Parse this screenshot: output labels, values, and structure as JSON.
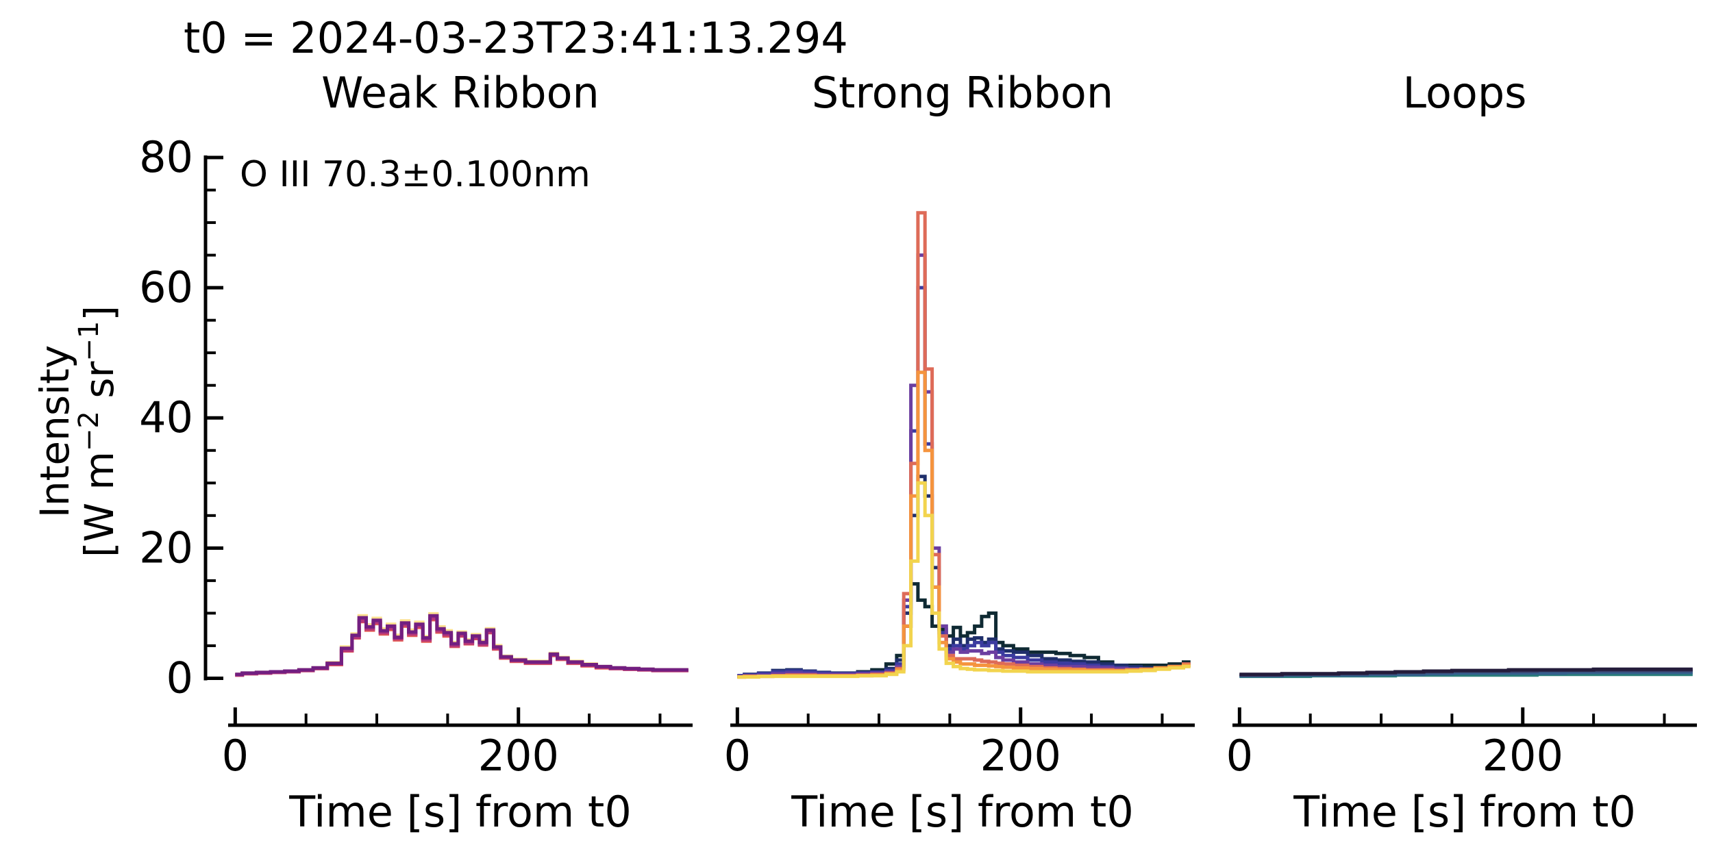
{
  "chart_data": {
    "type": "line",
    "suptitle": "t0 = 2024-03-23T23:41:13.294",
    "ylabel_line1": "Intensity",
    "ylabel_line2": "[W m",
    "ylabel_exp1": "−2",
    "ylabel_mid": " sr",
    "ylabel_exp2": "−1",
    "ylabel_end": "]",
    "xlabel": "Time [s] from t0",
    "annotation": "O III 70.3±0.100nm",
    "ylim": [
      -5,
      80
    ],
    "xlim": [
      -5,
      323
    ],
    "yticks": [
      "0",
      "20",
      "40",
      "60",
      "80"
    ],
    "xticks": [
      "0",
      "200"
    ],
    "panels": [
      {
        "title": "Weak Ribbon",
        "x": [
          0,
          10,
          20,
          30,
          40,
          50,
          60,
          70,
          80,
          85,
          90,
          95,
          100,
          105,
          110,
          115,
          120,
          125,
          130,
          135,
          140,
          145,
          150,
          155,
          160,
          165,
          170,
          175,
          180,
          185,
          190,
          200,
          210,
          220,
          225,
          230,
          240,
          250,
          260,
          270,
          280,
          290,
          300,
          310,
          320
        ],
        "series": [
          {
            "color": "#fbe08f",
            "values": [
              0.6,
              0.8,
              0.9,
              1.0,
              1.1,
              1.3,
              1.6,
              2.4,
              4.8,
              6.8,
              9.6,
              8.2,
              9.2,
              7.6,
              8.3,
              6.6,
              8.8,
              7.4,
              8.6,
              6.4,
              9.9,
              7.9,
              7.3,
              5.5,
              7.1,
              5.9,
              6.7,
              5.7,
              7.6,
              5.0,
              3.4,
              2.9,
              2.6,
              2.6,
              3.8,
              3.2,
              2.6,
              2.2,
              1.8,
              1.6,
              1.5,
              1.4,
              1.3,
              1.3,
              1.3
            ]
          },
          {
            "color": "#f6a77a",
            "values": [
              0.5,
              0.7,
              0.8,
              0.9,
              1.0,
              1.2,
              1.5,
              2.2,
              4.4,
              6.4,
              9.0,
              7.7,
              8.7,
              7.1,
              7.8,
              6.2,
              8.3,
              6.9,
              8.1,
              6.0,
              9.3,
              7.4,
              6.8,
              5.1,
              6.7,
              5.5,
              6.3,
              5.3,
              7.2,
              4.7,
              3.2,
              2.7,
              2.4,
              2.4,
              3.6,
              3.0,
              2.4,
              2.0,
              1.7,
              1.5,
              1.4,
              1.3,
              1.2,
              1.2,
              1.2
            ]
          },
          {
            "color": "#e25a55",
            "values": [
              0.5,
              0.7,
              0.8,
              0.9,
              1.0,
              1.2,
              1.5,
              2.1,
              4.2,
              6.2,
              8.7,
              7.4,
              8.4,
              6.8,
              7.5,
              5.9,
              8.0,
              6.6,
              7.8,
              5.7,
              9.0,
              7.1,
              6.5,
              4.9,
              6.5,
              5.3,
              6.1,
              5.1,
              7.0,
              4.5,
              3.1,
              2.6,
              2.3,
              2.3,
              3.5,
              2.9,
              2.3,
              1.9,
              1.6,
              1.5,
              1.4,
              1.3,
              1.2,
              1.2,
              1.2
            ]
          },
          {
            "color": "#b5367a",
            "values": [
              0.5,
              0.7,
              0.8,
              0.9,
              1.0,
              1.2,
              1.5,
              2.2,
              4.3,
              6.3,
              8.8,
              7.6,
              8.6,
              7.0,
              7.7,
              6.1,
              8.2,
              6.8,
              8.0,
              5.9,
              9.2,
              7.3,
              6.7,
              5.0,
              6.6,
              5.4,
              6.2,
              5.2,
              7.1,
              4.6,
              3.2,
              2.7,
              2.4,
              2.4,
              3.6,
              3.0,
              2.4,
              2.0,
              1.7,
              1.5,
              1.4,
              1.3,
              1.2,
              1.2,
              1.2
            ]
          },
          {
            "color": "#721f81",
            "values": [
              0.6,
              0.8,
              0.9,
              1.0,
              1.1,
              1.3,
              1.6,
              2.3,
              4.6,
              6.6,
              9.3,
              7.9,
              8.9,
              7.3,
              8.0,
              6.3,
              8.5,
              7.1,
              8.3,
              6.2,
              9.6,
              7.6,
              7.0,
              5.3,
              6.9,
              5.7,
              6.5,
              5.5,
              7.4,
              4.8,
              3.3,
              2.8,
              2.5,
              2.5,
              3.7,
              3.1,
              2.5,
              2.1,
              1.8,
              1.6,
              1.5,
              1.4,
              1.3,
              1.3,
              1.3
            ]
          }
        ]
      },
      {
        "title": "Strong Ribbon",
        "x": [
          0,
          10,
          20,
          30,
          40,
          50,
          60,
          70,
          80,
          90,
          100,
          110,
          115,
          120,
          125,
          130,
          135,
          140,
          145,
          150,
          155,
          160,
          165,
          170,
          175,
          180,
          185,
          190,
          200,
          210,
          220,
          230,
          240,
          250,
          260,
          270,
          280,
          290,
          300,
          310,
          320
        ],
        "series": [
          {
            "color": "#0f2a33",
            "values": [
              0.3,
              0.4,
              0.5,
              0.7,
              0.8,
              0.7,
              0.6,
              0.6,
              0.7,
              1.0,
              1.3,
              2.2,
              3.5,
              8.0,
              14.5,
              12.0,
              11.0,
              8.0,
              7.5,
              6.5,
              7.8,
              6.5,
              7.0,
              8.0,
              9.5,
              10.0,
              5.5,
              5.0,
              4.5,
              4.0,
              4.0,
              3.8,
              3.5,
              3.2,
              2.5,
              2.0,
              2.0,
              2.0,
              2.0,
              2.2,
              2.5
            ]
          },
          {
            "color": "#1f2f6b",
            "values": [
              0.4,
              0.6,
              0.8,
              1.2,
              1.3,
              1.1,
              0.9,
              0.8,
              0.8,
              0.9,
              1.0,
              1.5,
              2.8,
              10.0,
              25.0,
              31.0,
              28.0,
              17.0,
              8.0,
              5.0,
              6.0,
              5.0,
              6.0,
              6.2,
              5.5,
              6.0,
              4.5,
              4.2,
              4.0,
              3.5,
              3.0,
              2.8,
              2.6,
              2.5,
              2.2,
              2.0,
              1.8,
              1.6,
              1.6,
              1.8,
              2.0
            ]
          },
          {
            "color": "#3b3ba0",
            "values": [
              0.4,
              0.5,
              0.7,
              1.0,
              1.1,
              1.0,
              0.8,
              0.7,
              0.7,
              0.8,
              0.9,
              1.2,
              2.2,
              11.0,
              38.0,
              60.0,
              36.0,
              14.0,
              7.0,
              4.5,
              5.0,
              4.5,
              5.0,
              5.5,
              5.0,
              5.5,
              4.0,
              3.5,
              3.2,
              2.8,
              2.5,
              2.3,
              2.2,
              2.0,
              1.8,
              1.6,
              1.5,
              1.4,
              1.5,
              1.8,
              2.0
            ]
          },
          {
            "color": "#6b3ea0",
            "values": [
              0.3,
              0.4,
              0.5,
              0.7,
              0.8,
              0.7,
              0.6,
              0.6,
              0.6,
              0.7,
              0.8,
              1.0,
              1.8,
              12.0,
              45.0,
              65.0,
              44.0,
              20.0,
              8.0,
              4.0,
              4.5,
              4.0,
              4.2,
              4.2,
              3.8,
              4.0,
              3.2,
              2.8,
              2.5,
              2.2,
              2.0,
              1.8,
              1.8,
              1.7,
              1.6,
              1.5,
              1.4,
              1.4,
              1.5,
              1.8,
              2.0
            ]
          },
          {
            "color": "#de6b58",
            "values": [
              0.2,
              0.3,
              0.3,
              0.4,
              0.5,
              0.5,
              0.4,
              0.4,
              0.4,
              0.5,
              0.6,
              0.8,
              1.5,
              13.0,
              33.0,
              71.5,
              47.5,
              19.0,
              6.5,
              3.5,
              3.0,
              3.0,
              3.0,
              2.8,
              2.6,
              2.5,
              2.3,
              2.2,
              2.0,
              1.8,
              1.6,
              1.5,
              1.4,
              1.3,
              1.3,
              1.2,
              1.2,
              1.3,
              1.5,
              1.8,
              2.2
            ]
          },
          {
            "color": "#f5943e",
            "values": [
              0.2,
              0.3,
              0.3,
              0.4,
              0.4,
              0.4,
              0.4,
              0.4,
              0.4,
              0.4,
              0.5,
              0.7,
              1.3,
              8.0,
              28.0,
              47.0,
              35.0,
              14.0,
              5.5,
              3.0,
              2.5,
              2.2,
              2.2,
              2.0,
              2.0,
              1.9,
              1.8,
              1.7,
              1.6,
              1.5,
              1.4,
              1.3,
              1.3,
              1.2,
              1.2,
              1.2,
              1.3,
              1.4,
              1.6,
              1.8,
              2.0
            ]
          },
          {
            "color": "#f2d44e",
            "values": [
              0.2,
              0.2,
              0.3,
              0.3,
              0.3,
              0.3,
              0.3,
              0.3,
              0.3,
              0.4,
              0.4,
              0.6,
              1.0,
              5.0,
              18.0,
              30.0,
              25.0,
              10.0,
              4.5,
              2.3,
              1.8,
              1.5,
              1.4,
              1.3,
              1.3,
              1.2,
              1.2,
              1.1,
              1.1,
              1.0,
              1.0,
              1.0,
              1.0,
              1.0,
              1.0,
              1.0,
              1.1,
              1.2,
              1.4,
              1.6,
              1.8
            ]
          }
        ]
      },
      {
        "title": "Loops",
        "x": [
          0,
          20,
          40,
          60,
          80,
          100,
          120,
          140,
          160,
          180,
          200,
          220,
          240,
          260,
          280,
          300,
          320
        ],
        "series": [
          {
            "color": "#2a7d7a",
            "values": [
              0.3,
              0.3,
              0.3,
              0.4,
              0.4,
              0.4,
              0.5,
              0.5,
              0.5,
              0.5,
              0.5,
              0.6,
              0.6,
              0.6,
              0.6,
              0.6,
              0.6
            ]
          },
          {
            "color": "#35608e",
            "values": [
              0.4,
              0.4,
              0.5,
              0.5,
              0.5,
              0.6,
              0.6,
              0.7,
              0.8,
              0.8,
              0.8,
              0.8,
              0.9,
              0.9,
              0.9,
              0.9,
              0.9
            ]
          },
          {
            "color": "#3a3f6b",
            "values": [
              0.5,
              0.5,
              0.6,
              0.6,
              0.7,
              0.8,
              0.9,
              1.0,
              1.1,
              1.1,
              1.1,
              1.2,
              1.2,
              1.2,
              1.2,
              1.2,
              1.2
            ]
          },
          {
            "color": "#241c3b",
            "values": [
              0.6,
              0.6,
              0.7,
              0.7,
              0.8,
              0.9,
              1.0,
              1.1,
              1.2,
              1.2,
              1.3,
              1.3,
              1.3,
              1.4,
              1.4,
              1.4,
              1.4
            ]
          }
        ]
      }
    ]
  }
}
